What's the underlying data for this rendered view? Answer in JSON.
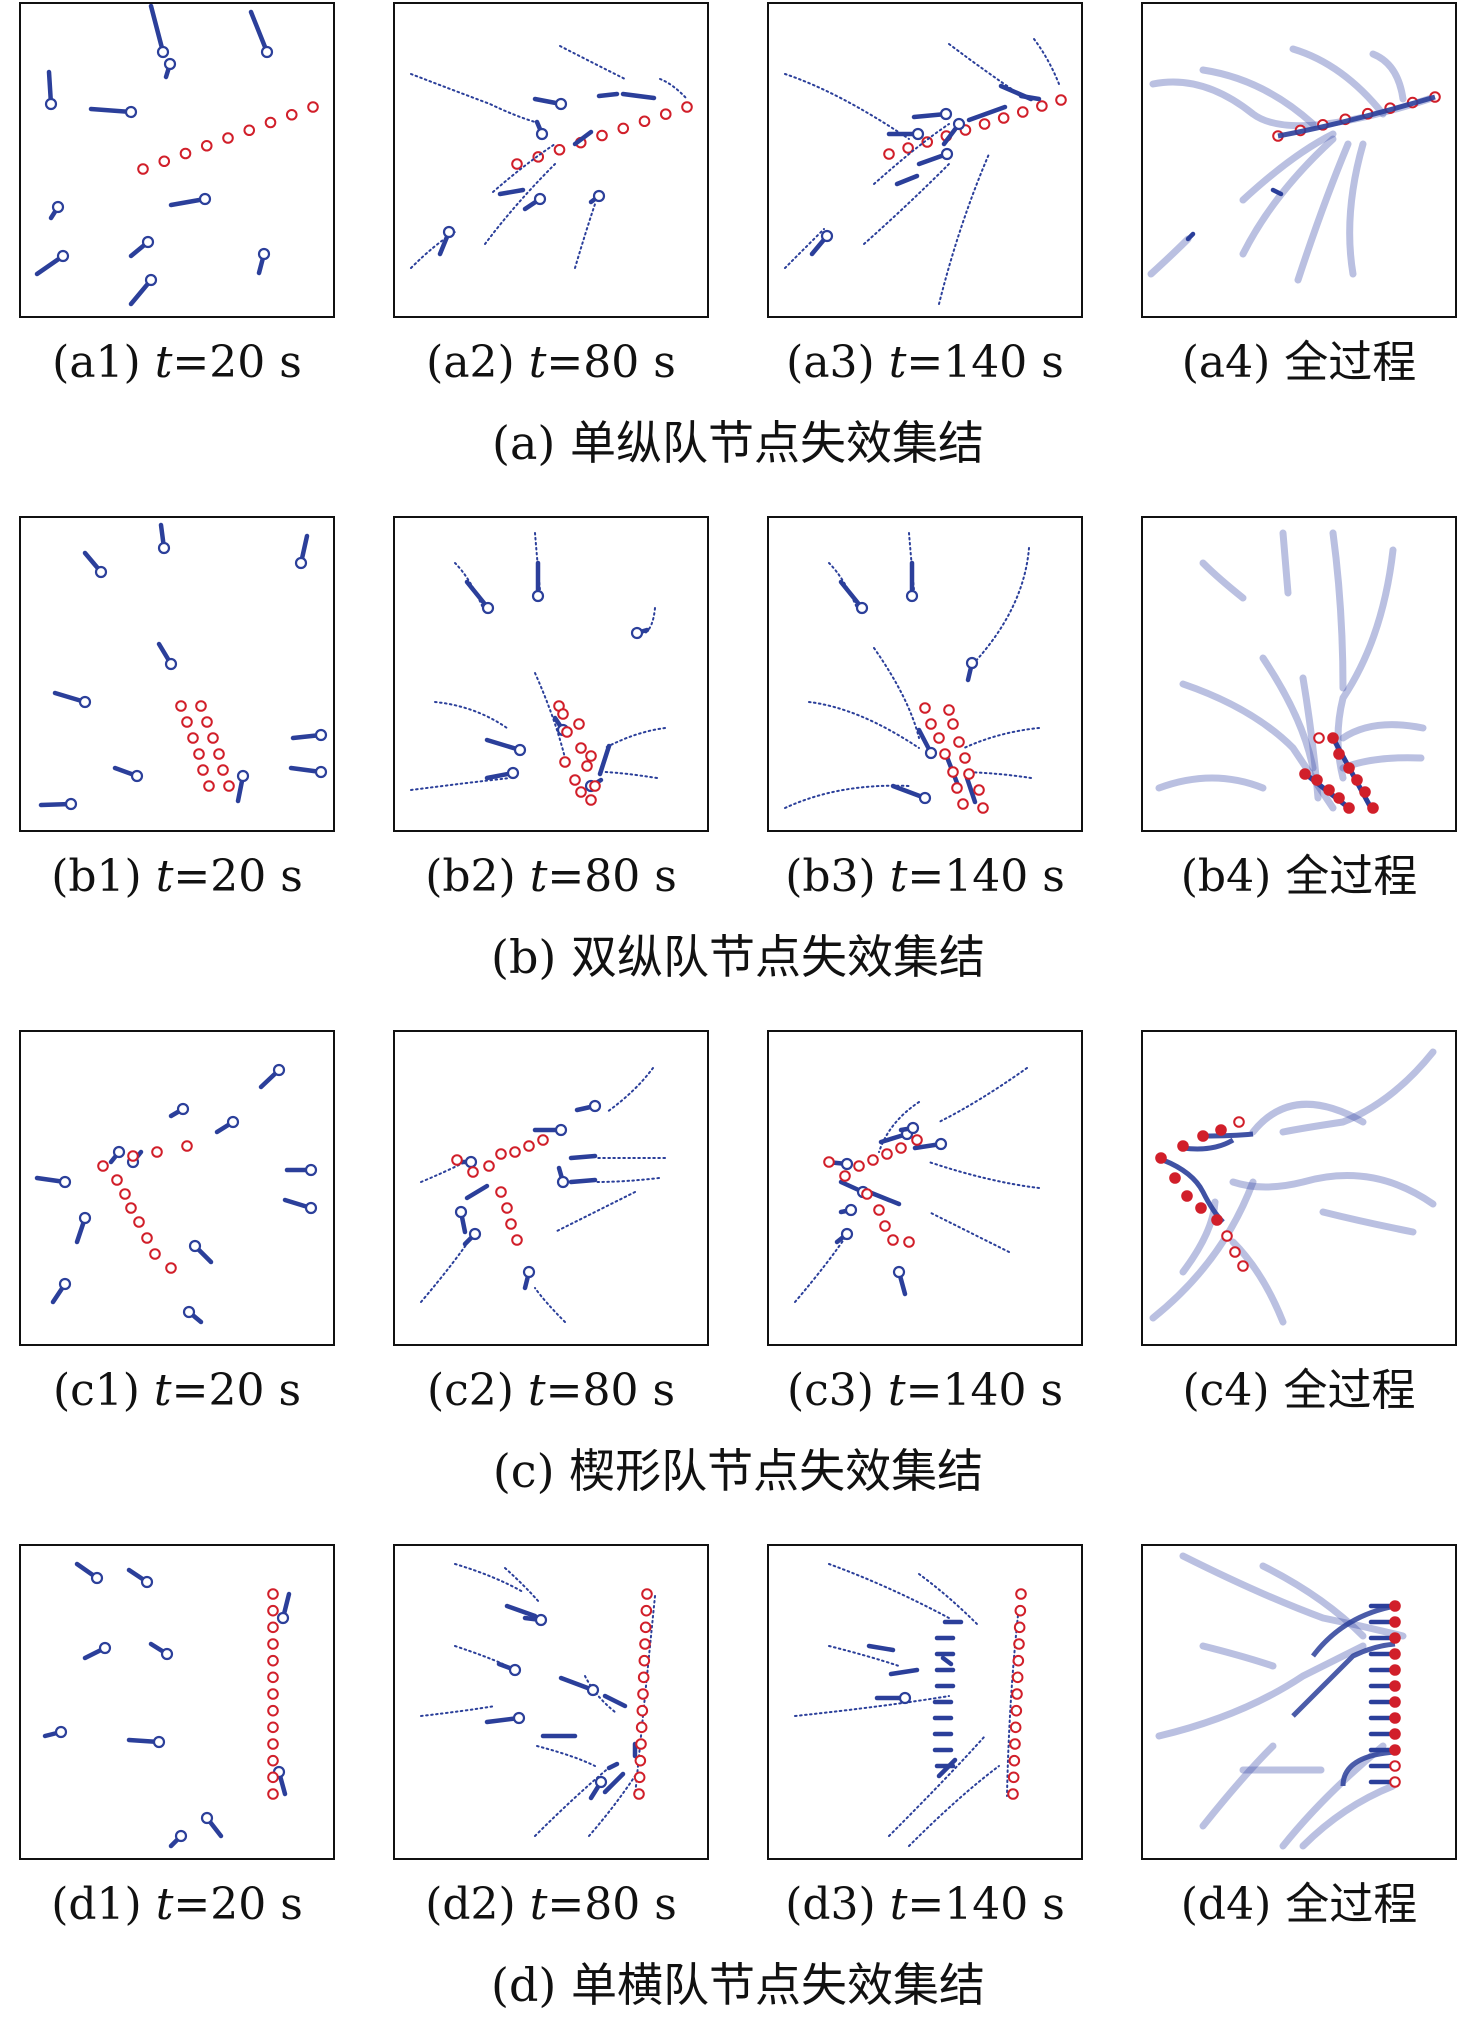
{
  "colors": {
    "agent": "#2b3f9a",
    "target": "#d11f2a",
    "trail": "#3a4aa8",
    "frame": "#111111"
  },
  "rows": [
    {
      "caption": "(a) 单纵队节点失效集结",
      "panels": [
        {
          "label": "(a1)",
          "time_var": "t",
          "time_text": "=20 s"
        },
        {
          "label": "(a2)",
          "time_var": "t",
          "time_text": "=80 s"
        },
        {
          "label": "(a3)",
          "time_var": "t",
          "time_text": "=140 s"
        },
        {
          "label": "(a4)",
          "time_var": "",
          "time_text": "全过程"
        }
      ]
    },
    {
      "caption": "(b) 双纵队节点失效集结",
      "panels": [
        {
          "label": "(b1)",
          "time_var": "t",
          "time_text": "=20 s"
        },
        {
          "label": "(b2)",
          "time_var": "t",
          "time_text": "=80 s"
        },
        {
          "label": "(b3)",
          "time_var": "t",
          "time_text": "=140 s"
        },
        {
          "label": "(b4)",
          "time_var": "",
          "time_text": "全过程"
        }
      ]
    },
    {
      "caption": "(c) 楔形队节点失效集结",
      "panels": [
        {
          "label": "(c1)",
          "time_var": "t",
          "time_text": "=20 s"
        },
        {
          "label": "(c2)",
          "time_var": "t",
          "time_text": "=80 s"
        },
        {
          "label": "(c3)",
          "time_var": "t",
          "time_text": "=140 s"
        },
        {
          "label": "(c4)",
          "time_var": "",
          "time_text": "全过程"
        }
      ]
    },
    {
      "caption": "(d) 单横队节点失效集结",
      "panels": [
        {
          "label": "(d1)",
          "time_var": "t",
          "time_text": "=20 s"
        },
        {
          "label": "(d2)",
          "time_var": "t",
          "time_text": "=80 s"
        },
        {
          "label": "(d3)",
          "time_var": "t",
          "time_text": "=140 s"
        },
        {
          "label": "(d4)",
          "time_var": "",
          "time_text": "全过程"
        }
      ]
    }
  ]
}
